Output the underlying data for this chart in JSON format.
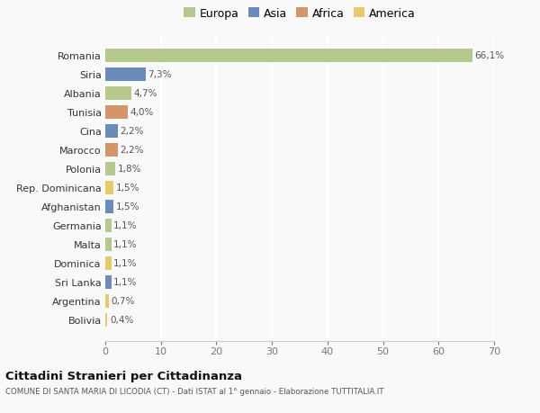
{
  "countries": [
    "Romania",
    "Siria",
    "Albania",
    "Tunisia",
    "Cina",
    "Marocco",
    "Polonia",
    "Rep. Dominicana",
    "Afghanistan",
    "Germania",
    "Malta",
    "Dominica",
    "Sri Lanka",
    "Argentina",
    "Bolivia"
  ],
  "values": [
    66.1,
    7.3,
    4.7,
    4.0,
    2.2,
    2.2,
    1.8,
    1.5,
    1.5,
    1.1,
    1.1,
    1.1,
    1.1,
    0.7,
    0.4
  ],
  "labels": [
    "66,1%",
    "7,3%",
    "4,7%",
    "4,0%",
    "2,2%",
    "2,2%",
    "1,8%",
    "1,5%",
    "1,5%",
    "1,1%",
    "1,1%",
    "1,1%",
    "1,1%",
    "0,7%",
    "0,4%"
  ],
  "colors": [
    "#b5c98e",
    "#6b8cba",
    "#b5c98e",
    "#d4956a",
    "#6b8cba",
    "#d4956a",
    "#b5c98e",
    "#e8c96b",
    "#6b8cba",
    "#b5c98e",
    "#b5c98e",
    "#e8c96b",
    "#6b8cba",
    "#e8c96b",
    "#e8c96b"
  ],
  "legend_labels": [
    "Europa",
    "Asia",
    "Africa",
    "America"
  ],
  "legend_colors": [
    "#b5c98e",
    "#6b8cba",
    "#d4956a",
    "#e8c96b"
  ],
  "title": "Cittadini Stranieri per Cittadinanza",
  "subtitle": "COMUNE DI SANTA MARIA DI LICODIA (CT) - Dati ISTAT al 1° gennaio - Elaborazione TUTTITALIA.IT",
  "xlim": [
    0,
    70
  ],
  "xticks": [
    0,
    10,
    20,
    30,
    40,
    50,
    60,
    70
  ],
  "background_color": "#f9f9f9",
  "grid_color": "#ffffff",
  "bar_height": 0.72
}
